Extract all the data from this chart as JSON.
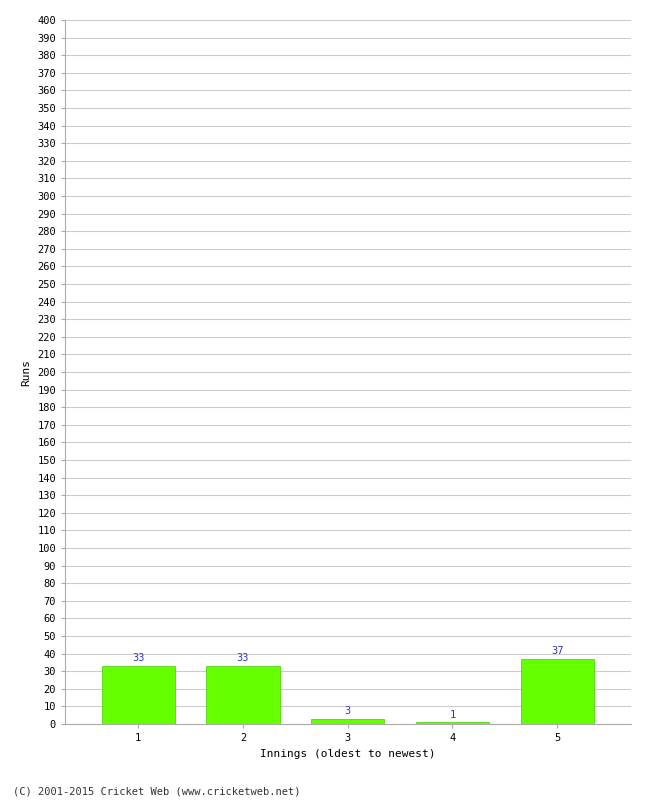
{
  "categories": [
    1,
    2,
    3,
    4,
    5
  ],
  "values": [
    33,
    33,
    3,
    1,
    37
  ],
  "bar_color": "#66ff00",
  "bar_edge_color": "#44cc00",
  "xlabel": "Innings (oldest to newest)",
  "ylabel": "Runs",
  "ylim": [
    0,
    400
  ],
  "ytick_step": 10,
  "background_color": "#ffffff",
  "grid_color": "#cccccc",
  "label_color": "#3333cc",
  "label_fontsize": 7.5,
  "axis_fontsize": 8,
  "tick_fontsize": 7.5,
  "footer": "(C) 2001-2015 Cricket Web (www.cricketweb.net)",
  "footer_fontsize": 7.5,
  "bar_width": 0.7
}
